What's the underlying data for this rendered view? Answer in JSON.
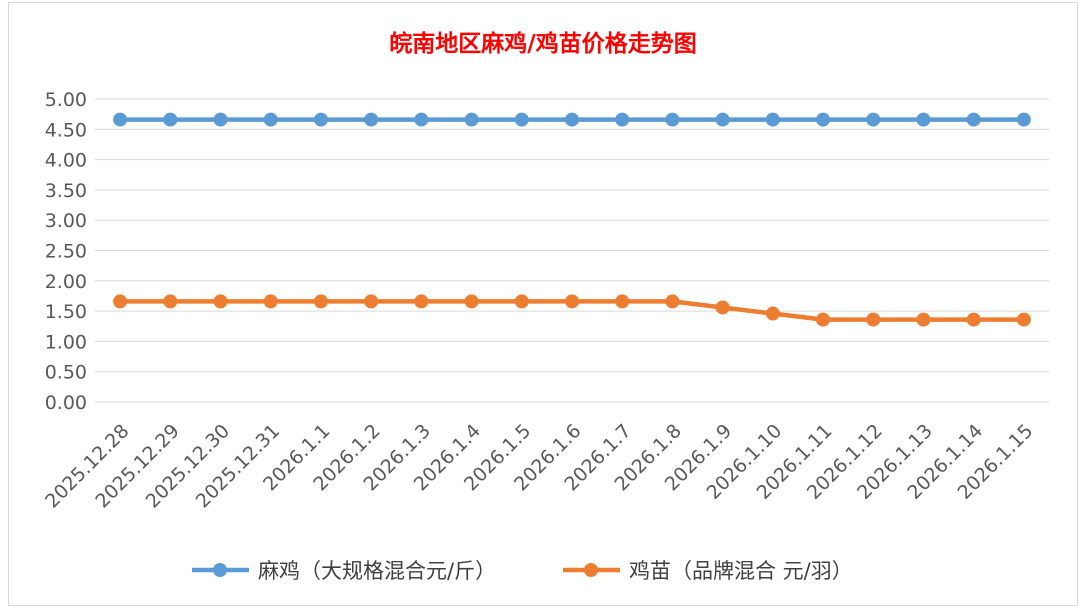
{
  "chart_data": {
    "type": "line",
    "title": "皖南地区麻鸡/鸡苗价格走势图",
    "xlabel": "",
    "ylabel": "",
    "categories": [
      "2025.12.28",
      "2025.12.29",
      "2025.12.30",
      "2025.12.31",
      "2026.1.1",
      "2026.1.2",
      "2026.1.3",
      "2026.1.4",
      "2026.1.5",
      "2026.1.6",
      "2026.1.7",
      "2026.1.8",
      "2026.1.9",
      "2026.1.10",
      "2026.1.11",
      "2026.1.12",
      "2026.1.13",
      "2026.1.14",
      "2026.1.15"
    ],
    "series": [
      {
        "name": "麻鸡（大规格混合元/斤）",
        "color": "#5b9bd5",
        "values": [
          4.66,
          4.66,
          4.66,
          4.66,
          4.66,
          4.66,
          4.66,
          4.66,
          4.66,
          4.66,
          4.66,
          4.66,
          4.66,
          4.66,
          4.66,
          4.66,
          4.66,
          4.66,
          4.66
        ]
      },
      {
        "name": "鸡苗（品牌混合 元/羽）",
        "color": "#ed7d31",
        "values": [
          1.66,
          1.66,
          1.66,
          1.66,
          1.66,
          1.66,
          1.66,
          1.66,
          1.66,
          1.66,
          1.66,
          1.66,
          1.56,
          1.46,
          1.36,
          1.36,
          1.36,
          1.36,
          1.36
        ]
      }
    ],
    "ylim": [
      0,
      5
    ],
    "yticks": [
      "0.00",
      "0.50",
      "1.00",
      "1.50",
      "2.00",
      "2.50",
      "3.00",
      "3.50",
      "4.00",
      "4.50",
      "5.00"
    ],
    "grid": true,
    "legend_position": "bottom",
    "title_color": "#ff0000"
  }
}
